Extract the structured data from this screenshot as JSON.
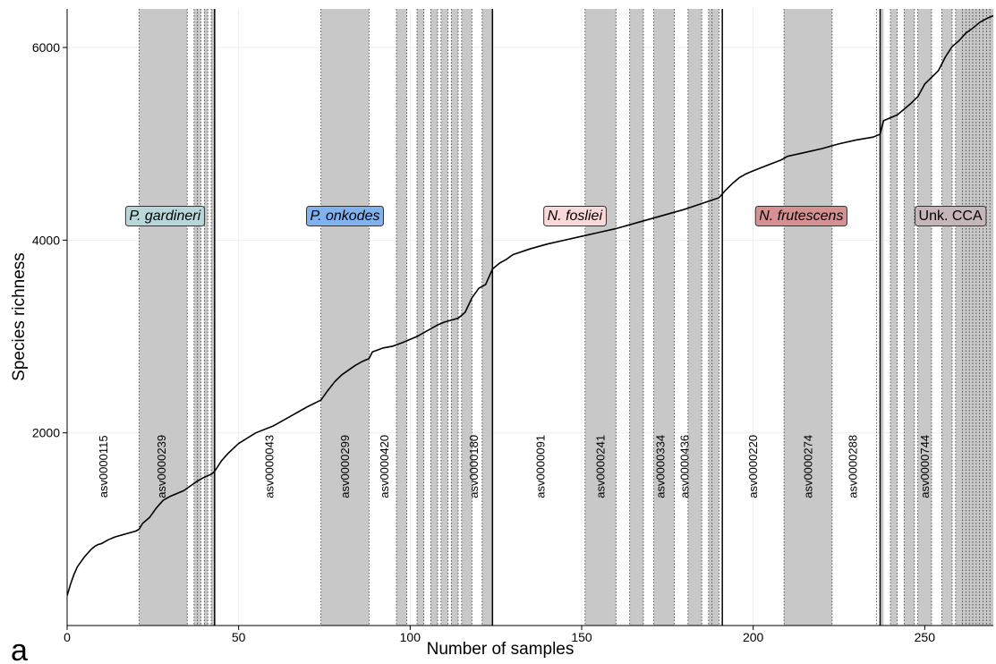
{
  "chart_data": {
    "type": "line",
    "panel_letter": "a",
    "xlabel": "Number of samples",
    "ylabel": "Species richness",
    "xlim": [
      0,
      270
    ],
    "ylim": [
      0,
      6400
    ],
    "x_ticks": [
      0,
      50,
      100,
      150,
      200,
      250
    ],
    "y_ticks": [
      2000,
      4000,
      6000
    ],
    "grid": true,
    "series": [
      {
        "x": [
          0,
          1,
          2,
          3,
          4,
          5,
          6,
          7,
          8,
          9,
          10,
          11,
          12,
          14,
          16,
          18,
          20,
          21,
          22,
          24,
          26,
          28,
          30,
          32,
          34,
          36,
          38,
          40,
          42,
          43,
          45,
          47,
          50,
          55,
          60,
          65,
          70,
          74,
          76,
          78,
          80,
          82,
          84,
          86,
          88,
          89,
          92,
          95,
          98,
          100,
          102,
          104,
          106,
          108,
          110,
          112,
          114,
          116,
          118,
          120,
          122,
          124,
          126,
          128,
          130,
          135,
          140,
          145,
          150,
          155,
          160,
          165,
          170,
          175,
          180,
          185,
          190,
          192,
          194,
          196,
          198,
          200,
          205,
          208,
          210,
          215,
          220,
          225,
          230,
          235,
          237,
          238,
          240,
          242,
          244,
          246,
          248,
          250,
          252,
          254,
          256,
          258,
          260,
          262,
          264,
          266,
          268,
          270
        ],
        "y": [
          310,
          430,
          530,
          610,
          660,
          710,
          750,
          790,
          820,
          840,
          850,
          870,
          890,
          920,
          940,
          960,
          980,
          1000,
          1060,
          1120,
          1220,
          1300,
          1340,
          1370,
          1400,
          1450,
          1500,
          1540,
          1570,
          1600,
          1710,
          1790,
          1890,
          2000,
          2070,
          2170,
          2270,
          2340,
          2440,
          2530,
          2600,
          2650,
          2700,
          2740,
          2770,
          2840,
          2880,
          2900,
          2940,
          2970,
          3000,
          3040,
          3080,
          3120,
          3150,
          3170,
          3190,
          3250,
          3400,
          3500,
          3540,
          3700,
          3760,
          3800,
          3850,
          3910,
          3960,
          4000,
          4040,
          4080,
          4120,
          4170,
          4220,
          4270,
          4320,
          4380,
          4440,
          4520,
          4590,
          4650,
          4690,
          4720,
          4790,
          4830,
          4870,
          4910,
          4950,
          5000,
          5040,
          5070,
          5100,
          5240,
          5270,
          5300,
          5360,
          5420,
          5490,
          5620,
          5690,
          5760,
          5900,
          6010,
          6070,
          6150,
          6200,
          6260,
          6300,
          6330
        ]
      }
    ],
    "shaded_bands": [
      [
        21,
        35
      ],
      [
        37,
        39
      ],
      [
        40,
        41
      ],
      [
        42,
        43
      ],
      [
        74,
        88
      ],
      [
        96,
        99
      ],
      [
        102,
        104
      ],
      [
        106,
        108
      ],
      [
        109,
        111
      ],
      [
        112,
        114
      ],
      [
        115,
        118
      ],
      [
        121,
        124
      ],
      [
        151,
        160
      ],
      [
        164,
        168
      ],
      [
        171,
        177
      ],
      [
        181,
        185
      ],
      [
        187,
        190
      ],
      [
        209,
        223
      ],
      [
        237,
        238
      ],
      [
        240,
        242
      ],
      [
        244,
        247
      ],
      [
        248,
        252
      ],
      [
        255,
        258
      ],
      [
        259,
        270
      ]
    ],
    "dotted_lines": [
      21,
      35,
      37,
      38,
      39,
      40,
      41,
      42,
      74,
      88,
      96,
      99,
      102,
      104,
      106,
      108,
      109,
      111,
      112,
      114,
      115,
      118,
      121,
      151,
      160,
      164,
      168,
      171,
      177,
      181,
      185,
      187,
      188,
      190,
      209,
      223,
      236,
      240,
      242,
      244,
      247,
      248,
      252,
      255,
      258,
      259,
      261,
      262,
      263,
      264,
      265,
      266,
      267,
      268,
      269
    ],
    "group_boundaries": [
      43,
      124,
      191,
      237
    ],
    "species_groups": [
      {
        "label": "P. gardineri",
        "x_center": 28.5,
        "y": 4250,
        "color": "#b7d7d8",
        "italic": true
      },
      {
        "label": "P. onkodes",
        "x_center": 81,
        "y": 4250,
        "color": "#7fb2ef",
        "italic": true
      },
      {
        "label": "N. fosliei",
        "x_center": 148,
        "y": 4250,
        "color": "#fad9d9",
        "italic": true
      },
      {
        "label": "N. frutescens",
        "x_center": 214,
        "y": 4250,
        "color": "#d69092",
        "italic": true
      },
      {
        "label": "Unk. CCA",
        "x_center": 257.5,
        "y": 4250,
        "color": "#c6b6b9",
        "italic": false
      }
    ],
    "asv_labels": [
      {
        "text": "asv0000115",
        "x": 10.5
      },
      {
        "text": "asv0000239",
        "x": 27.5
      },
      {
        "text": "asv0000043",
        "x": 59
      },
      {
        "text": "asv0000299",
        "x": 81
      },
      {
        "text": "asv0000420",
        "x": 92.5
      },
      {
        "text": "asv0000180",
        "x": 118.5
      },
      {
        "text": "asv0000091",
        "x": 138
      },
      {
        "text": "asv0000241",
        "x": 155.5
      },
      {
        "text": "asv0000334",
        "x": 173
      },
      {
        "text": "asv0000436",
        "x": 180
      },
      {
        "text": "asv0000220",
        "x": 200
      },
      {
        "text": "asv0000274",
        "x": 216
      },
      {
        "text": "asv0000288",
        "x": 229
      },
      {
        "text": "asv0000744",
        "x": 250
      }
    ],
    "asv_label_y": 1650,
    "colors": {
      "band": "#c8c8c8",
      "line": "#000000",
      "grid": "#eeeeee",
      "label_border": "#333333"
    }
  }
}
